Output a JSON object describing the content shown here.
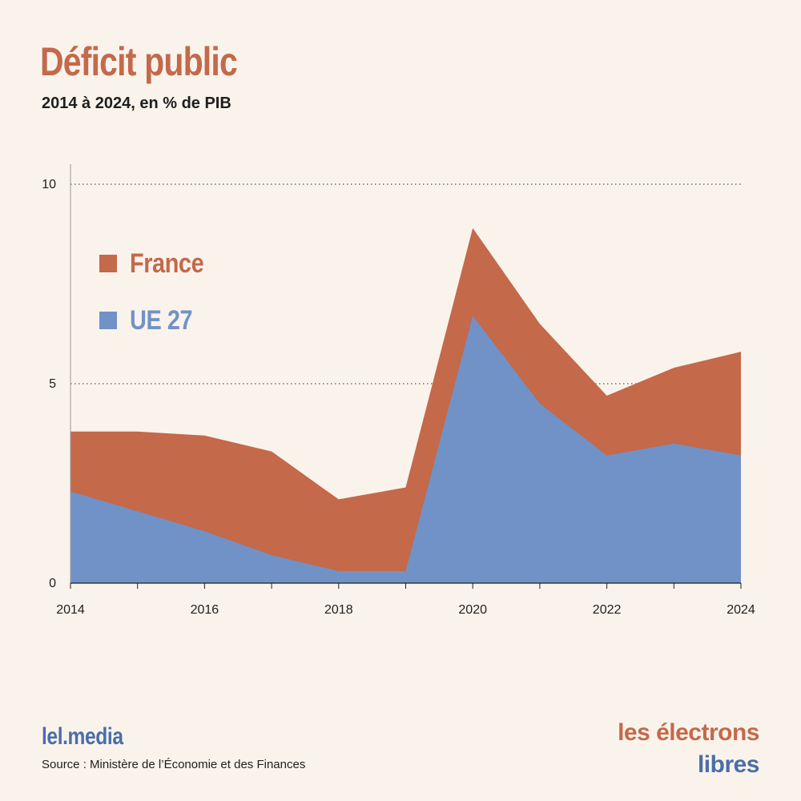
{
  "header": {
    "title": "Déficit public",
    "subtitle": "2014 à 2024, en % de PIB"
  },
  "colors": {
    "france": "#c4694a",
    "ue27": "#7092c7",
    "background": "#faf3ec"
  },
  "chart_data": {
    "type": "area",
    "title": "Déficit public",
    "subtitle": "2014 à 2024, en % de PIB",
    "x": [
      2014,
      2015,
      2016,
      2017,
      2018,
      2019,
      2020,
      2021,
      2022,
      2023,
      2024
    ],
    "x_tick_labels": [
      "2014",
      "2016",
      "2018",
      "2020",
      "2022",
      "2024"
    ],
    "y_tick_labels": [
      "0",
      "5",
      "10"
    ],
    "ylim": [
      0,
      10
    ],
    "grid": "dotted horizontal at 5 and 10",
    "legend_position": "top-left",
    "series": [
      {
        "name": "France",
        "values": [
          3.8,
          3.8,
          3.7,
          3.3,
          2.1,
          2.4,
          8.9,
          6.5,
          4.7,
          5.4,
          5.8
        ]
      },
      {
        "name": "UE 27",
        "values": [
          2.3,
          1.8,
          1.3,
          0.7,
          0.3,
          0.3,
          6.7,
          4.5,
          3.2,
          3.5,
          3.2
        ]
      }
    ]
  },
  "footer": {
    "brand": "lel.media",
    "source": "Source : Ministère de l’Économie et des Finances",
    "logo_line1": "les électrons",
    "logo_line2": "libres"
  }
}
